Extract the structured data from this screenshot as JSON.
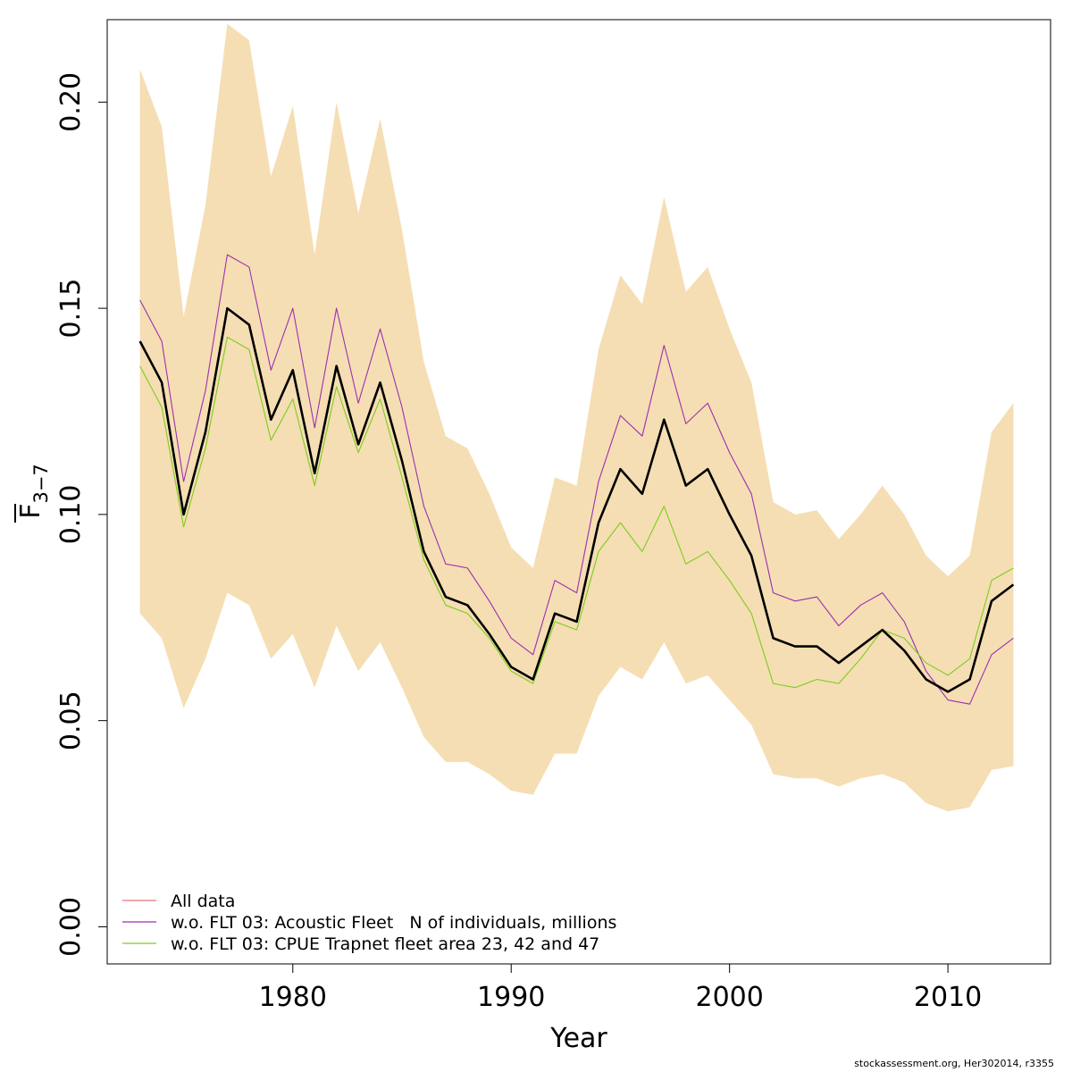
{
  "chart_data": {
    "type": "line",
    "xlabel": "Year",
    "ylabel": "F",
    "ylabel_subscript": "3−7",
    "xlim": [
      1971.5,
      2014.7
    ],
    "ylim": [
      -0.009,
      0.22
    ],
    "x_ticks": [
      1980,
      1990,
      2000,
      2010
    ],
    "x_tick_labels": [
      "1980",
      "1990",
      "2000",
      "2010"
    ],
    "y_ticks": [
      0.0,
      0.05,
      0.1,
      0.15,
      0.2
    ],
    "y_tick_labels": [
      "0.00",
      "0.05",
      "0.10",
      "0.15",
      "0.20"
    ],
    "grid": false,
    "legend_position": "bottom-left",
    "colors": {
      "band": "#f5deb3",
      "all_data_legend": "#e8747c",
      "all_data_line": "#000000",
      "acoustic": "#9b30b0",
      "cpue": "#7ccd1c"
    },
    "x": [
      1973,
      1974,
      1975,
      1976,
      1977,
      1978,
      1979,
      1980,
      1981,
      1982,
      1983,
      1984,
      1985,
      1986,
      1987,
      1988,
      1989,
      1990,
      1991,
      1992,
      1993,
      1994,
      1995,
      1996,
      1997,
      1998,
      1999,
      2000,
      2001,
      2002,
      2003,
      2004,
      2005,
      2006,
      2007,
      2008,
      2009,
      2010,
      2011,
      2012,
      2013
    ],
    "band": {
      "upper": [
        0.208,
        0.194,
        0.148,
        0.175,
        0.219,
        0.215,
        0.182,
        0.199,
        0.163,
        0.2,
        0.173,
        0.196,
        0.169,
        0.137,
        0.119,
        0.116,
        0.105,
        0.092,
        0.087,
        0.109,
        0.107,
        0.14,
        0.158,
        0.151,
        0.177,
        0.154,
        0.16,
        0.145,
        0.132,
        0.103,
        0.1,
        0.101,
        0.094,
        0.1,
        0.107,
        0.1,
        0.09,
        0.085,
        0.09,
        0.12,
        0.127
      ],
      "lower": [
        0.076,
        0.07,
        0.053,
        0.065,
        0.081,
        0.078,
        0.065,
        0.071,
        0.058,
        0.073,
        0.062,
        0.069,
        0.058,
        0.046,
        0.04,
        0.04,
        0.037,
        0.033,
        0.032,
        0.042,
        0.042,
        0.056,
        0.063,
        0.06,
        0.069,
        0.059,
        0.061,
        0.055,
        0.049,
        0.037,
        0.036,
        0.036,
        0.034,
        0.036,
        0.037,
        0.035,
        0.03,
        0.028,
        0.029,
        0.038,
        0.039
      ]
    },
    "series": [
      {
        "name": "All data",
        "values": [
          0.142,
          0.132,
          0.1,
          0.12,
          0.15,
          0.146,
          0.123,
          0.135,
          0.11,
          0.136,
          0.117,
          0.132,
          0.113,
          0.091,
          0.08,
          0.078,
          0.071,
          0.063,
          0.06,
          0.076,
          0.074,
          0.098,
          0.111,
          0.105,
          0.123,
          0.107,
          0.111,
          0.1,
          0.09,
          0.07,
          0.068,
          0.068,
          0.064,
          0.068,
          0.072,
          0.067,
          0.06,
          0.057,
          0.06,
          0.079,
          0.083
        ]
      },
      {
        "name": "w.o. FLT 03: Acoustic Fleet   N of individuals, millions",
        "values": [
          0.152,
          0.142,
          0.108,
          0.13,
          0.163,
          0.16,
          0.135,
          0.15,
          0.121,
          0.15,
          0.127,
          0.145,
          0.126,
          0.102,
          0.088,
          0.087,
          0.079,
          0.07,
          0.066,
          0.084,
          0.081,
          0.108,
          0.124,
          0.119,
          0.141,
          0.122,
          0.127,
          0.115,
          0.105,
          0.081,
          0.079,
          0.08,
          0.073,
          0.078,
          0.081,
          0.074,
          0.062,
          0.055,
          0.054,
          0.066,
          0.07
        ]
      },
      {
        "name": "w.o. FLT 03: CPUE Trapnet fleet area 23, 42 and 47",
        "values": [
          0.136,
          0.126,
          0.097,
          0.116,
          0.143,
          0.14,
          0.118,
          0.128,
          0.107,
          0.131,
          0.115,
          0.128,
          0.109,
          0.089,
          0.078,
          0.076,
          0.07,
          0.062,
          0.059,
          0.074,
          0.072,
          0.091,
          0.098,
          0.091,
          0.102,
          0.088,
          0.091,
          0.084,
          0.076,
          0.059,
          0.058,
          0.06,
          0.059,
          0.065,
          0.072,
          0.07,
          0.064,
          0.061,
          0.065,
          0.084,
          0.087
        ]
      }
    ],
    "legend": [
      {
        "label": "All data"
      },
      {
        "label": "w.o. FLT 03: Acoustic Fleet   N of individuals, millions"
      },
      {
        "label": "w.o. FLT 03: CPUE Trapnet fleet area 23, 42 and 47"
      }
    ],
    "credit": "stockassessment.org, Her302014, r3355"
  }
}
